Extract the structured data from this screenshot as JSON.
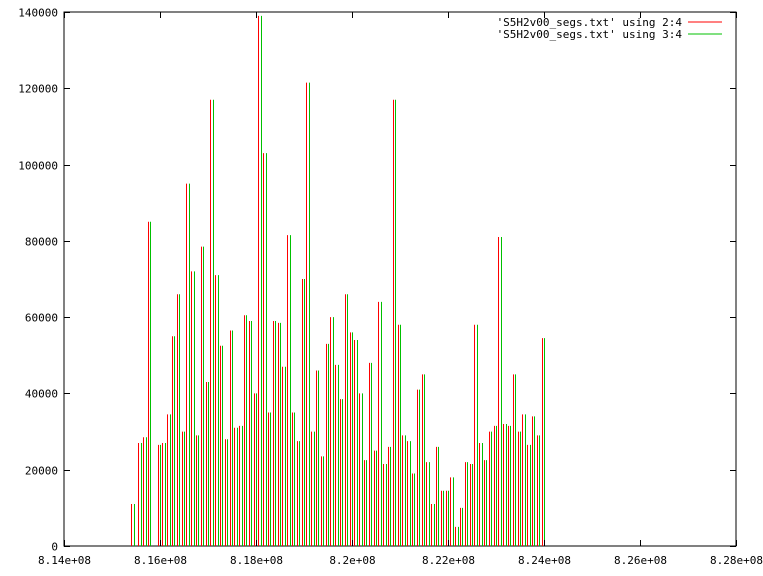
{
  "chart_data": {
    "type": "bar",
    "title": "",
    "xlabel": "",
    "ylabel": "",
    "xlim": [
      814000000,
      828000000
    ],
    "ylim": [
      0,
      140000
    ],
    "grid": false,
    "legend_position": "top-right",
    "x_tick_labels": [
      "8.14e+08",
      "8.16e+08",
      "8.18e+08",
      "8.2e+08",
      "8.22e+08",
      "8.24e+08",
      "8.26e+08",
      "8.28e+08"
    ],
    "x_ticks": [
      814000000,
      816000000,
      818000000,
      820000000,
      822000000,
      824000000,
      826000000,
      828000000
    ],
    "y_tick_labels": [
      "0",
      "20000",
      "40000",
      "60000",
      "80000",
      "100000",
      "120000",
      "140000"
    ],
    "y_ticks": [
      0,
      20000,
      40000,
      60000,
      80000,
      100000,
      120000,
      140000
    ],
    "series": [
      {
        "name": "'S5H2v00_segs.txt' using 2:4",
        "color": "#ff0000",
        "points": [
          [
            815400000,
            11000
          ],
          [
            815550000,
            27000
          ],
          [
            815650000,
            28500
          ],
          [
            815750000,
            85000
          ],
          [
            815950000,
            26500
          ],
          [
            816050000,
            27000
          ],
          [
            816150000,
            34500
          ],
          [
            816250000,
            55000
          ],
          [
            816350000,
            66000
          ],
          [
            816450000,
            30000
          ],
          [
            816550000,
            95000
          ],
          [
            816650000,
            72000
          ],
          [
            816750000,
            29000
          ],
          [
            816850000,
            78500
          ],
          [
            816950000,
            43000
          ],
          [
            817050000,
            117000
          ],
          [
            817150000,
            71000
          ],
          [
            817250000,
            52500
          ],
          [
            817350000,
            28000
          ],
          [
            817450000,
            56500
          ],
          [
            817550000,
            31000
          ],
          [
            817650000,
            31500
          ],
          [
            817750000,
            60500
          ],
          [
            817850000,
            59000
          ],
          [
            817950000,
            40000
          ],
          [
            818050000,
            139000
          ],
          [
            818150000,
            103000
          ],
          [
            818250000,
            35000
          ],
          [
            818350000,
            59000
          ],
          [
            818450000,
            58500
          ],
          [
            818550000,
            47000
          ],
          [
            818650000,
            81500
          ],
          [
            818750000,
            35000
          ],
          [
            818850000,
            27500
          ],
          [
            818950000,
            70000
          ],
          [
            819050000,
            121500
          ],
          [
            819150000,
            30000
          ],
          [
            819250000,
            46000
          ],
          [
            819350000,
            23500
          ],
          [
            819450000,
            53000
          ],
          [
            819550000,
            60000
          ],
          [
            819650000,
            47500
          ],
          [
            819750000,
            38500
          ],
          [
            819850000,
            66000
          ],
          [
            819950000,
            56000
          ],
          [
            820050000,
            54000
          ],
          [
            820150000,
            40000
          ],
          [
            820250000,
            22500
          ],
          [
            820350000,
            48000
          ],
          [
            820450000,
            25000
          ],
          [
            820550000,
            64000
          ],
          [
            820650000,
            21500
          ],
          [
            820750000,
            26000
          ],
          [
            820850000,
            117000
          ],
          [
            820950000,
            58000
          ],
          [
            821050000,
            29000
          ],
          [
            821150000,
            27500
          ],
          [
            821250000,
            19000
          ],
          [
            821350000,
            41000
          ],
          [
            821450000,
            45000
          ],
          [
            821550000,
            22000
          ],
          [
            821650000,
            11000
          ],
          [
            821750000,
            26000
          ],
          [
            821850000,
            14500
          ],
          [
            821950000,
            14500
          ],
          [
            822050000,
            18000
          ],
          [
            822150000,
            5000
          ],
          [
            822250000,
            10000
          ],
          [
            822350000,
            22000
          ],
          [
            822450000,
            21500
          ],
          [
            822550000,
            58000
          ],
          [
            822650000,
            27000
          ],
          [
            822750000,
            22500
          ],
          [
            822850000,
            30000
          ],
          [
            822950000,
            31500
          ],
          [
            823050000,
            81000
          ],
          [
            823150000,
            32000
          ],
          [
            823250000,
            31500
          ],
          [
            823350000,
            45000
          ],
          [
            823450000,
            30000
          ],
          [
            823550000,
            34500
          ],
          [
            823650000,
            26500
          ],
          [
            823750000,
            34000
          ],
          [
            823850000,
            29000
          ],
          [
            823950000,
            54500
          ]
        ]
      },
      {
        "name": "'S5H2v00_segs.txt' using 3:4",
        "color": "#00c000",
        "points": [
          [
            815450000,
            11000
          ],
          [
            815600000,
            27000
          ],
          [
            815700000,
            28500
          ],
          [
            815800000,
            85000
          ],
          [
            816000000,
            26500
          ],
          [
            816100000,
            27000
          ],
          [
            816200000,
            34500
          ],
          [
            816300000,
            55000
          ],
          [
            816400000,
            66000
          ],
          [
            816500000,
            30000
          ],
          [
            816600000,
            95000
          ],
          [
            816700000,
            72000
          ],
          [
            816800000,
            29000
          ],
          [
            816900000,
            78500
          ],
          [
            817000000,
            43000
          ],
          [
            817100000,
            117000
          ],
          [
            817200000,
            71000
          ],
          [
            817300000,
            52500
          ],
          [
            817400000,
            28000
          ],
          [
            817500000,
            56500
          ],
          [
            817600000,
            31000
          ],
          [
            817700000,
            31500
          ],
          [
            817800000,
            60500
          ],
          [
            817900000,
            59000
          ],
          [
            818000000,
            40000
          ],
          [
            818100000,
            139000
          ],
          [
            818200000,
            103000
          ],
          [
            818300000,
            35000
          ],
          [
            818400000,
            59000
          ],
          [
            818500000,
            58500
          ],
          [
            818600000,
            47000
          ],
          [
            818700000,
            81500
          ],
          [
            818800000,
            35000
          ],
          [
            818900000,
            27500
          ],
          [
            819000000,
            70000
          ],
          [
            819100000,
            121500
          ],
          [
            819200000,
            30000
          ],
          [
            819300000,
            46000
          ],
          [
            819400000,
            23500
          ],
          [
            819500000,
            53000
          ],
          [
            819600000,
            60000
          ],
          [
            819700000,
            47500
          ],
          [
            819800000,
            38500
          ],
          [
            819900000,
            66000
          ],
          [
            820000000,
            56000
          ],
          [
            820100000,
            54000
          ],
          [
            820200000,
            40000
          ],
          [
            820300000,
            22500
          ],
          [
            820400000,
            48000
          ],
          [
            820500000,
            25000
          ],
          [
            820600000,
            64000
          ],
          [
            820700000,
            21500
          ],
          [
            820800000,
            26000
          ],
          [
            820900000,
            117000
          ],
          [
            821000000,
            58000
          ],
          [
            821100000,
            29000
          ],
          [
            821200000,
            27500
          ],
          [
            821300000,
            19000
          ],
          [
            821400000,
            41000
          ],
          [
            821500000,
            45000
          ],
          [
            821600000,
            22000
          ],
          [
            821700000,
            11000
          ],
          [
            821800000,
            26000
          ],
          [
            821900000,
            14500
          ],
          [
            822000000,
            14500
          ],
          [
            822100000,
            18000
          ],
          [
            822200000,
            5000
          ],
          [
            822300000,
            10000
          ],
          [
            822400000,
            22000
          ],
          [
            822500000,
            21500
          ],
          [
            822600000,
            58000
          ],
          [
            822700000,
            27000
          ],
          [
            822800000,
            22500
          ],
          [
            822900000,
            30000
          ],
          [
            823000000,
            31500
          ],
          [
            823100000,
            81000
          ],
          [
            823200000,
            32000
          ],
          [
            823300000,
            31500
          ],
          [
            823400000,
            45000
          ],
          [
            823500000,
            30000
          ],
          [
            823600000,
            34500
          ],
          [
            823700000,
            26500
          ],
          [
            823800000,
            34000
          ],
          [
            823900000,
            29000
          ],
          [
            824000000,
            54500
          ]
        ]
      }
    ]
  }
}
